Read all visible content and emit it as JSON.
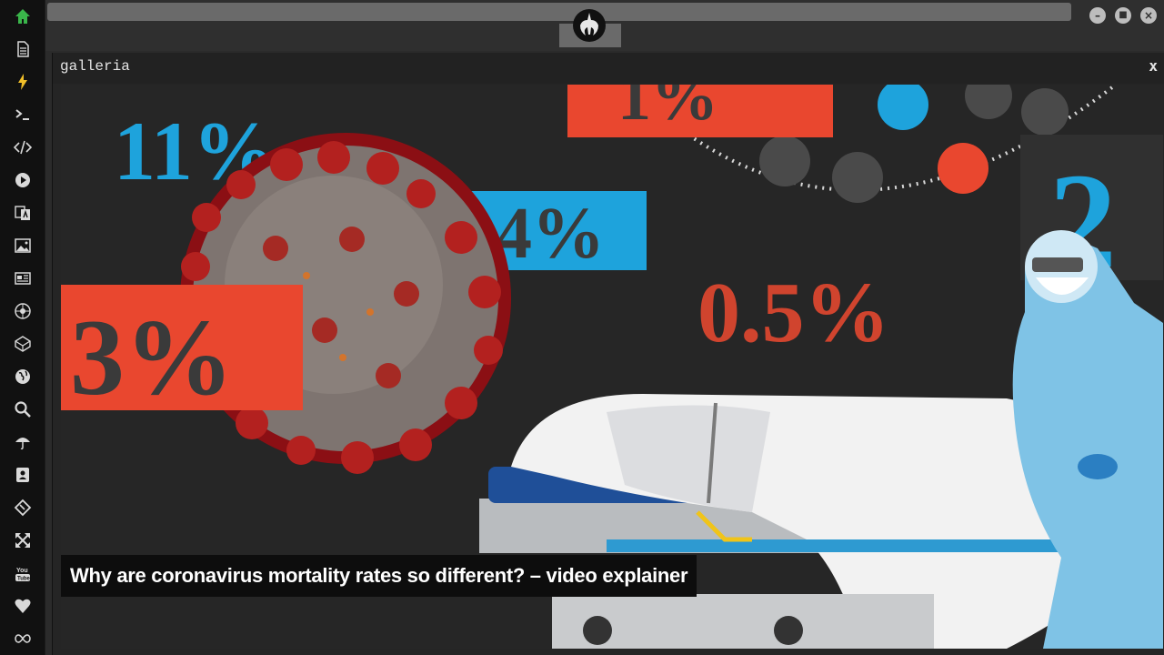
{
  "sidebar": {
    "icons": [
      "home-icon",
      "document-icon",
      "bolt-icon",
      "terminal-icon",
      "code-icon",
      "play-icon",
      "translate-icon",
      "image-icon",
      "news-icon",
      "rebel-icon",
      "cube-icon",
      "globe-icon",
      "search-icon",
      "umbrella-icon",
      "contact-icon",
      "git-icon",
      "expand-icon",
      "youtube-icon",
      "heart-icon",
      "infinity-icon"
    ]
  },
  "window": {
    "title": "galleria",
    "close_label": "x"
  },
  "gallery": {
    "caption": "Why are coronavirus mortality rates so different? – video explainer",
    "stats": [
      "11%",
      "1%",
      "4%",
      "3%",
      "0.5%",
      "2"
    ]
  },
  "colors": {
    "accent": "#3ab54a",
    "red_box": "#e9472f",
    "blue_box": "#1ea3dc"
  }
}
